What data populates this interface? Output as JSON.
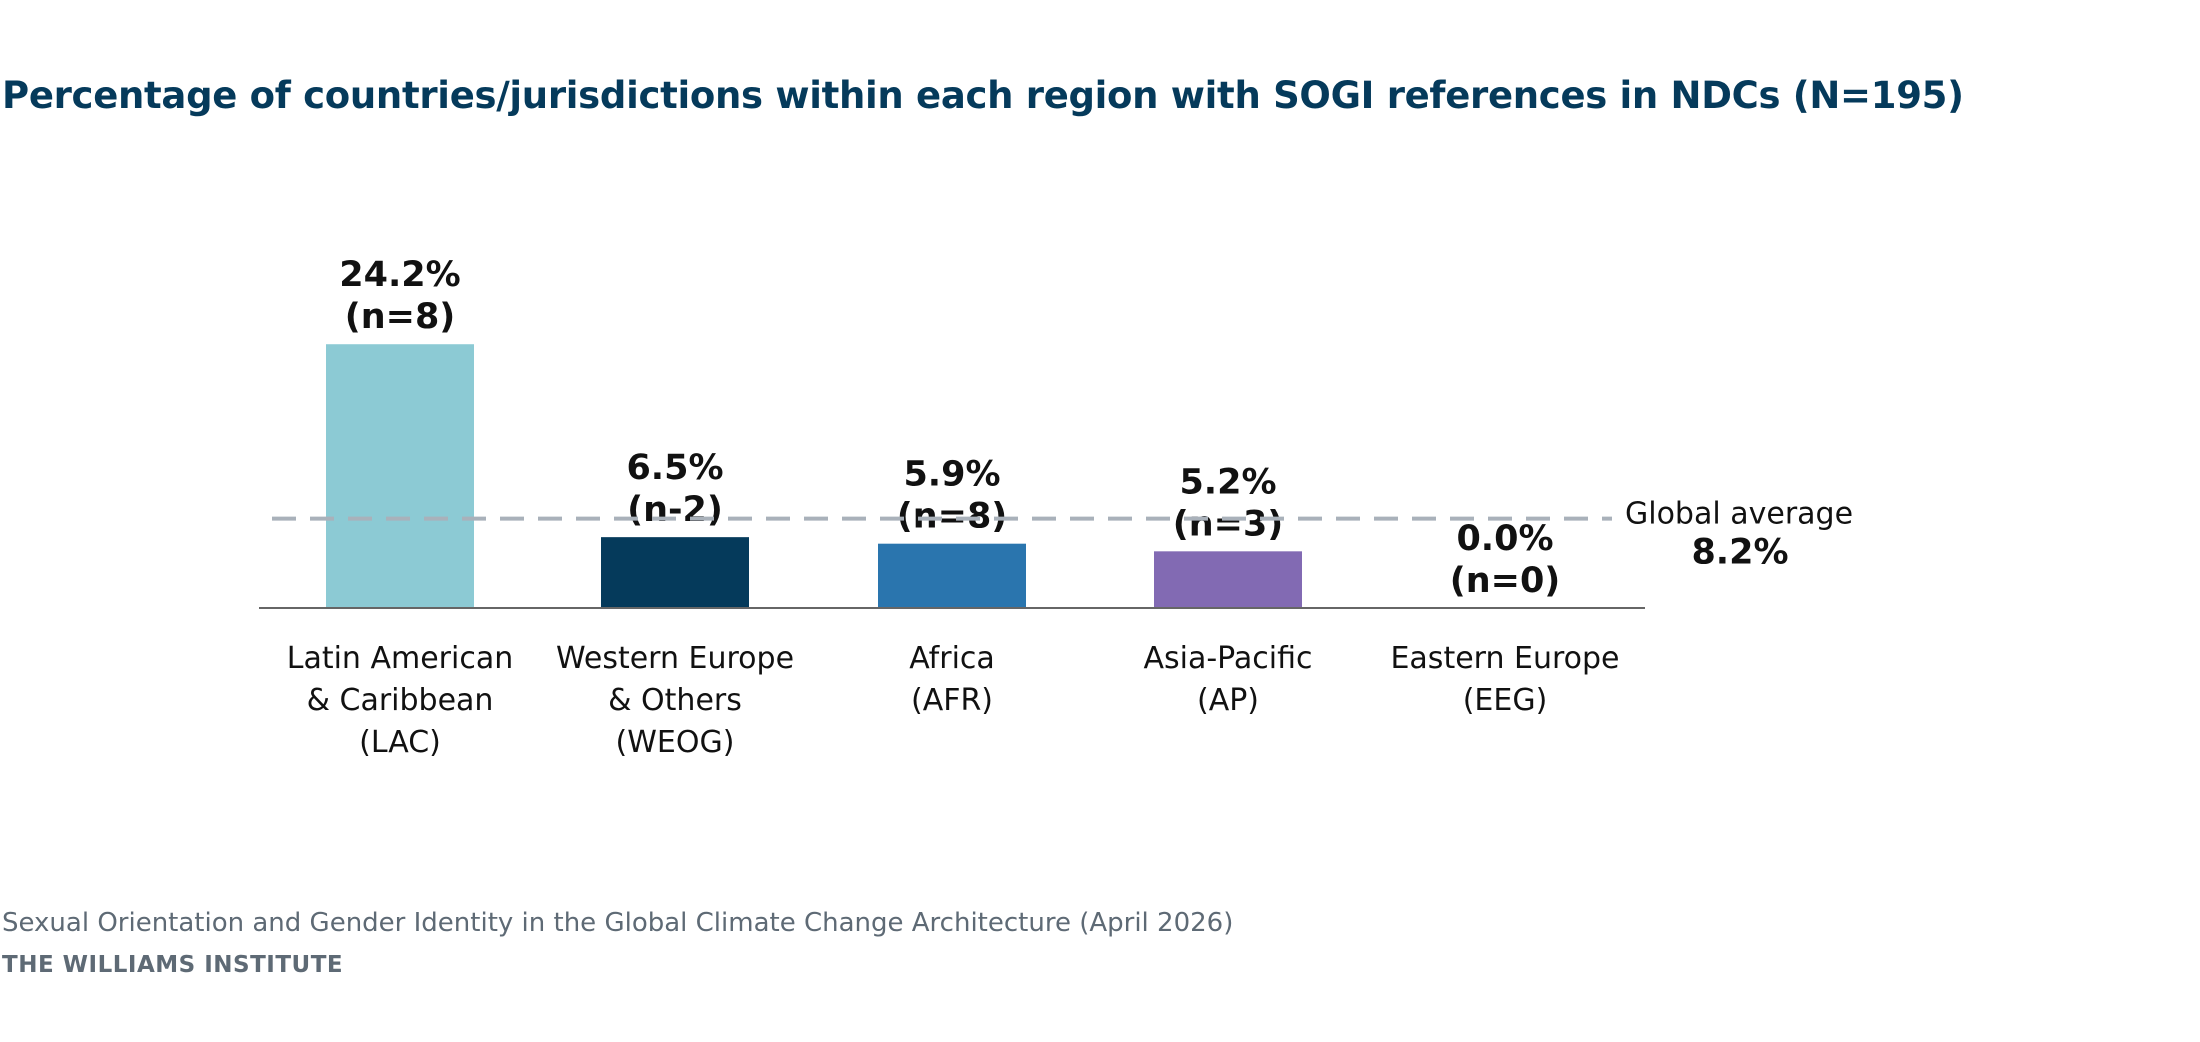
{
  "chart_data": {
    "type": "bar",
    "title": "Percentage of countries/jurisdictions within each region with SOGI references in NDCs (N=195)",
    "xlabel": "",
    "ylabel": "",
    "ylim": [
      0,
      25
    ],
    "grid": false,
    "categories": [
      [
        "Latin American",
        "& Caribbean",
        "(LAC)"
      ],
      [
        "Western Europe",
        "& Others",
        "(WEOG)"
      ],
      [
        "Africa",
        "(AFR)"
      ],
      [
        "Asia-Pacific",
        "(AP)"
      ],
      [
        "Eastern Europe",
        "(EEG)"
      ]
    ],
    "values": [
      24.2,
      6.5,
      5.9,
      5.2,
      0.0
    ],
    "value_labels": [
      "24.2%",
      "6.5%",
      "5.9%",
      "5.2%",
      "0.0%"
    ],
    "n_labels": [
      "(n=8)",
      "(n-2)",
      "(n=8)",
      "(n=3)",
      "(n=0)"
    ],
    "colors": [
      "#8ccad4",
      "#053a5b",
      "#2a75ae",
      "#826ab3",
      "#cccccc"
    ],
    "reference_line": {
      "label": "Global average",
      "value_label": "8.2%",
      "value": 8.2,
      "color": "#a9b1ba"
    }
  },
  "footer": {
    "source": "Sexual Orientation and Gender Identity in the Global Climate Change Architecture (April 2026)",
    "org": "THE WILLIAMS INSTITUTE"
  }
}
